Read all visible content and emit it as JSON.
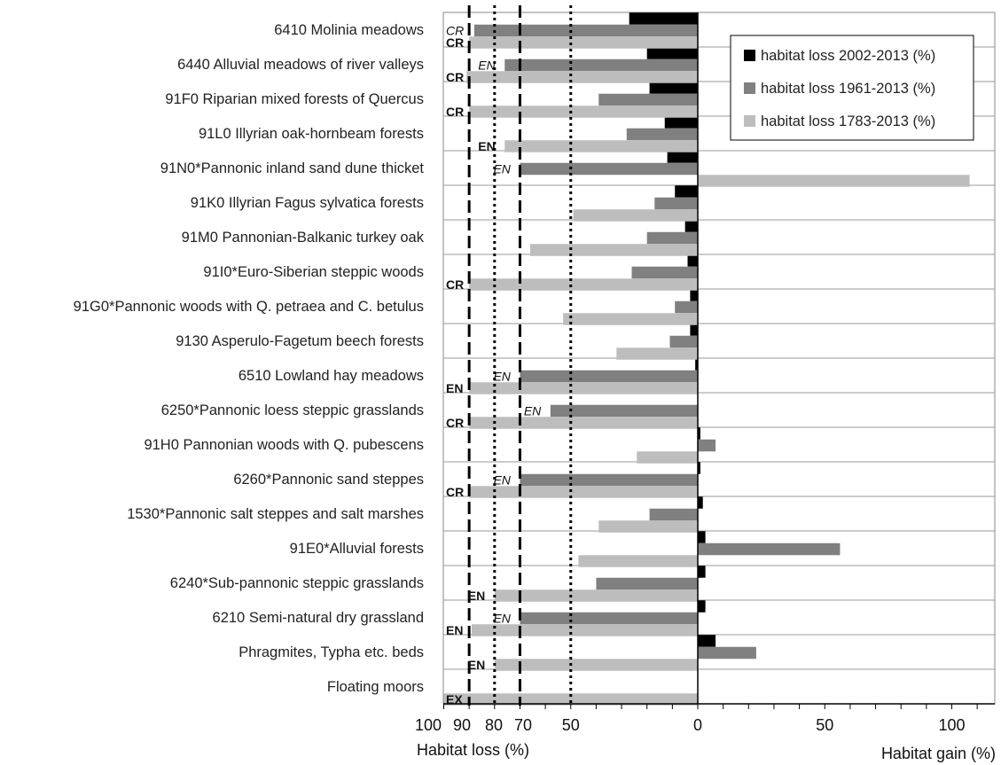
{
  "chart_data": {
    "type": "bar",
    "orientation": "horizontal",
    "categories": [
      "6410 Molinia meadows",
      "6440 Alluvial meadows of river valleys",
      "91F0 Riparian mixed forests of Quercus",
      "91L0 Illyrian oak-hornbeam forests",
      "91N0*Pannonic inland sand dune thicket",
      "91K0 Illyrian Fagus sylvatica forests",
      "91M0 Pannonian-Balkanic turkey oak",
      "91I0*Euro-Siberian steppic woods",
      "91G0*Pannonic woods with Q. petraea and C. betulus",
      "9130 Asperulo-Fagetum beech forests",
      "6510 Lowland hay meadows",
      "6250*Pannonic loess steppic grasslands",
      "91H0 Pannonian woods with Q. pubescens",
      "6260*Pannonic sand steppes",
      "1530*Pannonic salt steppes and salt marshes",
      "91E0*Alluvial forests",
      "6240*Sub-pannonic steppic grasslands",
      "6210 Semi-natural dry grassland",
      "Phragmites, Typha etc.  beds",
      "Floating moors"
    ],
    "series": [
      {
        "name": "habitat loss 2002-2013 (%)",
        "color": "#000000",
        "values": [
          -27,
          -20,
          -19,
          -13,
          -12,
          -9,
          -5,
          -4,
          -3,
          -3,
          -1,
          0,
          1,
          1,
          2,
          3,
          3,
          3,
          7,
          null
        ]
      },
      {
        "name": "habitat loss 1961-2013 (%)",
        "color": "#808080",
        "values": [
          -88,
          -76,
          -39,
          -28,
          -70,
          -17,
          -20,
          -26,
          -9,
          -11,
          -70,
          -58,
          7,
          -70,
          -19,
          56,
          -40,
          -70,
          23,
          null
        ]
      },
      {
        "name": "habitat loss 1783-2013 (%)",
        "color": "#bdbdbd",
        "values": [
          -90,
          -91,
          -90,
          -76,
          107,
          -49,
          -66,
          -90,
          -53,
          -32,
          -90,
          -90,
          -24,
          -90,
          -39,
          -47,
          -80,
          -89,
          -80,
          -100
        ]
      }
    ],
    "status_labels": [
      {
        "category": 0,
        "series": 1,
        "text": "CR",
        "italic": true
      },
      {
        "category": 0,
        "series": 2,
        "text": "CR",
        "italic": false
      },
      {
        "category": 1,
        "series": 1,
        "text": "EN",
        "italic": true
      },
      {
        "category": 1,
        "series": 2,
        "text": "CR",
        "italic": false
      },
      {
        "category": 2,
        "series": 2,
        "text": "CR",
        "italic": false
      },
      {
        "category": 3,
        "series": 2,
        "text": "EN",
        "italic": false
      },
      {
        "category": 4,
        "series": 1,
        "text": "EN",
        "italic": true
      },
      {
        "category": 7,
        "series": 2,
        "text": "CR",
        "italic": false
      },
      {
        "category": 10,
        "series": 1,
        "text": "EN",
        "italic": true
      },
      {
        "category": 10,
        "series": 2,
        "text": "EN",
        "italic": false
      },
      {
        "category": 11,
        "series": 1,
        "text": "EN",
        "italic": true
      },
      {
        "category": 11,
        "series": 2,
        "text": "CR",
        "italic": false
      },
      {
        "category": 13,
        "series": 1,
        "text": "EN",
        "italic": true
      },
      {
        "category": 13,
        "series": 2,
        "text": "CR",
        "italic": false
      },
      {
        "category": 16,
        "series": 2,
        "text": "EN",
        "italic": false
      },
      {
        "category": 17,
        "series": 1,
        "text": "EN",
        "italic": true
      },
      {
        "category": 17,
        "series": 2,
        "text": "EN",
        "italic": false
      },
      {
        "category": 18,
        "series": 2,
        "text": "EN",
        "italic": false
      },
      {
        "category": 19,
        "series": 2,
        "text": "EX",
        "italic": false
      }
    ],
    "xlim": [
      -100,
      115
    ],
    "x_ticks": [
      {
        "value": -100,
        "label": "100"
      },
      {
        "value": -90,
        "label": "90"
      },
      {
        "value": -80,
        "label": "80"
      },
      {
        "value": -70,
        "label": "70"
      },
      {
        "value": -50,
        "label": "50"
      },
      {
        "value": 0,
        "label": "0"
      },
      {
        "value": 50,
        "label": "50"
      },
      {
        "value": 100,
        "label": "100"
      }
    ],
    "reference_lines": [
      {
        "value": -90,
        "style": "dashed"
      },
      {
        "value": -80,
        "style": "dotted"
      },
      {
        "value": -70,
        "style": "dashed"
      },
      {
        "value": -50,
        "style": "dotted"
      }
    ],
    "xlabel_left": "Habitat loss (%)",
    "xlabel_right": "Habitat gain (%)",
    "legend_position": "top-right",
    "grid": "horizontal"
  }
}
